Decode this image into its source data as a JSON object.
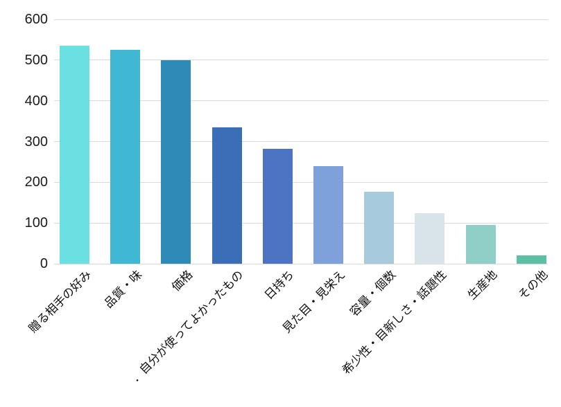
{
  "chart_data": {
    "type": "bar",
    "categories": [
      "贈る相手の好み",
      "品質・味",
      "価格",
      "．自分が使ってよかったもの",
      "日持ち",
      "見た目・見栄え",
      "容量・個数",
      "希少性・目新しさ・話題性",
      "生産地",
      "その他"
    ],
    "values": [
      535,
      526,
      500,
      335,
      283,
      239,
      177,
      124,
      96,
      21
    ],
    "bar_colors": [
      "#6ae0e2",
      "#40b7d3",
      "#2e8bb8",
      "#3a6fb8",
      "#4c74c2",
      "#7ea0db",
      "#a7cadd",
      "#d8e4ea",
      "#90cfc7",
      "#5cc0a4",
      "#ffffff"
    ],
    "title": "",
    "xlabel": "",
    "ylabel": "",
    "ylim": [
      0,
      600
    ],
    "yticks": [
      0,
      100,
      200,
      300,
      400,
      500,
      600
    ],
    "grid": true,
    "legend": false,
    "gridline_color": "#d9d9d9",
    "tick_label_color": "#1b1b1b",
    "background": "#ffffff"
  }
}
